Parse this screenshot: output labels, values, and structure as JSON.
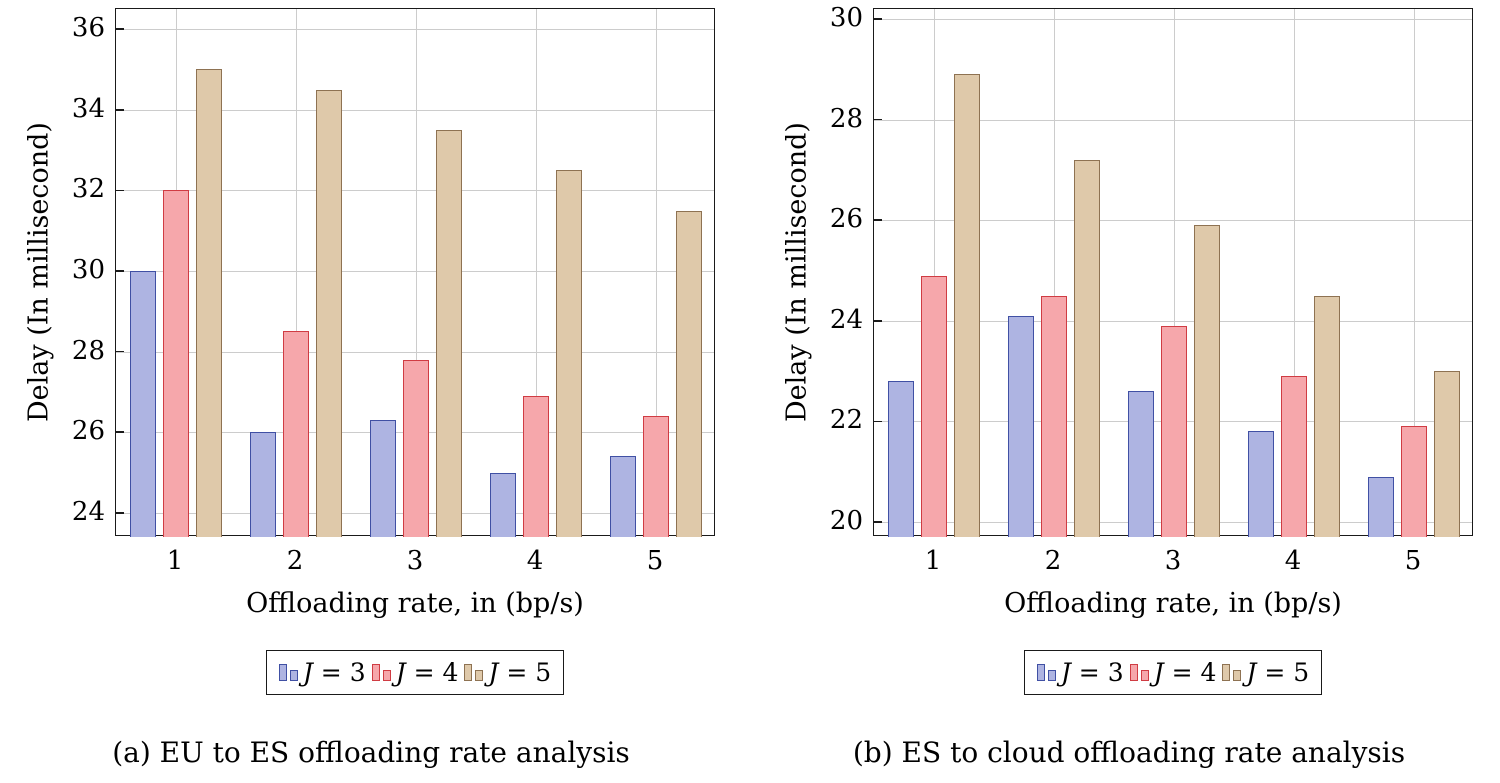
{
  "figure": {
    "captions": [
      "(a) EU to ES offloading rate analysis",
      "(b) ES to cloud offloading rate analysis"
    ]
  },
  "chart_data": [
    {
      "type": "bar",
      "title": "(a) EU to ES offloading rate analysis",
      "xlabel": "Offloading rate, in (bp/s)",
      "ylabel": "Delay (In millisecond)",
      "categories": [
        "1",
        "2",
        "3",
        "4",
        "5"
      ],
      "series": [
        {
          "name": "J = 3",
          "fill": "#aeb4e2",
          "edge": "#4050a4",
          "values": [
            30.0,
            26.0,
            26.3,
            25.0,
            25.4
          ]
        },
        {
          "name": "J = 4",
          "fill": "#f6a7ab",
          "edge": "#d03c43",
          "values": [
            32.0,
            28.5,
            27.8,
            26.9,
            26.4
          ]
        },
        {
          "name": "J = 5",
          "fill": "#dfc9aa",
          "edge": "#8e7252",
          "values": [
            35.0,
            34.5,
            33.5,
            32.5,
            31.5
          ]
        }
      ],
      "yticks": [
        24,
        26,
        28,
        30,
        32,
        34,
        36
      ],
      "ylim": [
        23.4,
        36.5
      ],
      "grid": true,
      "legend_position": "below"
    },
    {
      "type": "bar",
      "title": "(b) ES to cloud offloading rate analysis",
      "xlabel": "Offloading rate, in (bp/s)",
      "ylabel": "Delay (In millisecond)",
      "categories": [
        "1",
        "2",
        "3",
        "4",
        "5"
      ],
      "series": [
        {
          "name": "J = 3",
          "fill": "#aeb4e2",
          "edge": "#4050a4",
          "values": [
            22.8,
            24.1,
            22.6,
            21.8,
            20.9
          ]
        },
        {
          "name": "J = 4",
          "fill": "#f6a7ab",
          "edge": "#d03c43",
          "values": [
            24.9,
            24.5,
            23.9,
            22.9,
            21.9
          ]
        },
        {
          "name": "J = 5",
          "fill": "#dfc9aa",
          "edge": "#8e7252",
          "values": [
            28.9,
            27.2,
            25.9,
            24.5,
            23.0
          ]
        }
      ],
      "yticks": [
        20,
        22,
        24,
        26,
        28,
        30
      ],
      "ylim": [
        19.7,
        30.2
      ],
      "grid": true,
      "legend_position": "below"
    }
  ]
}
